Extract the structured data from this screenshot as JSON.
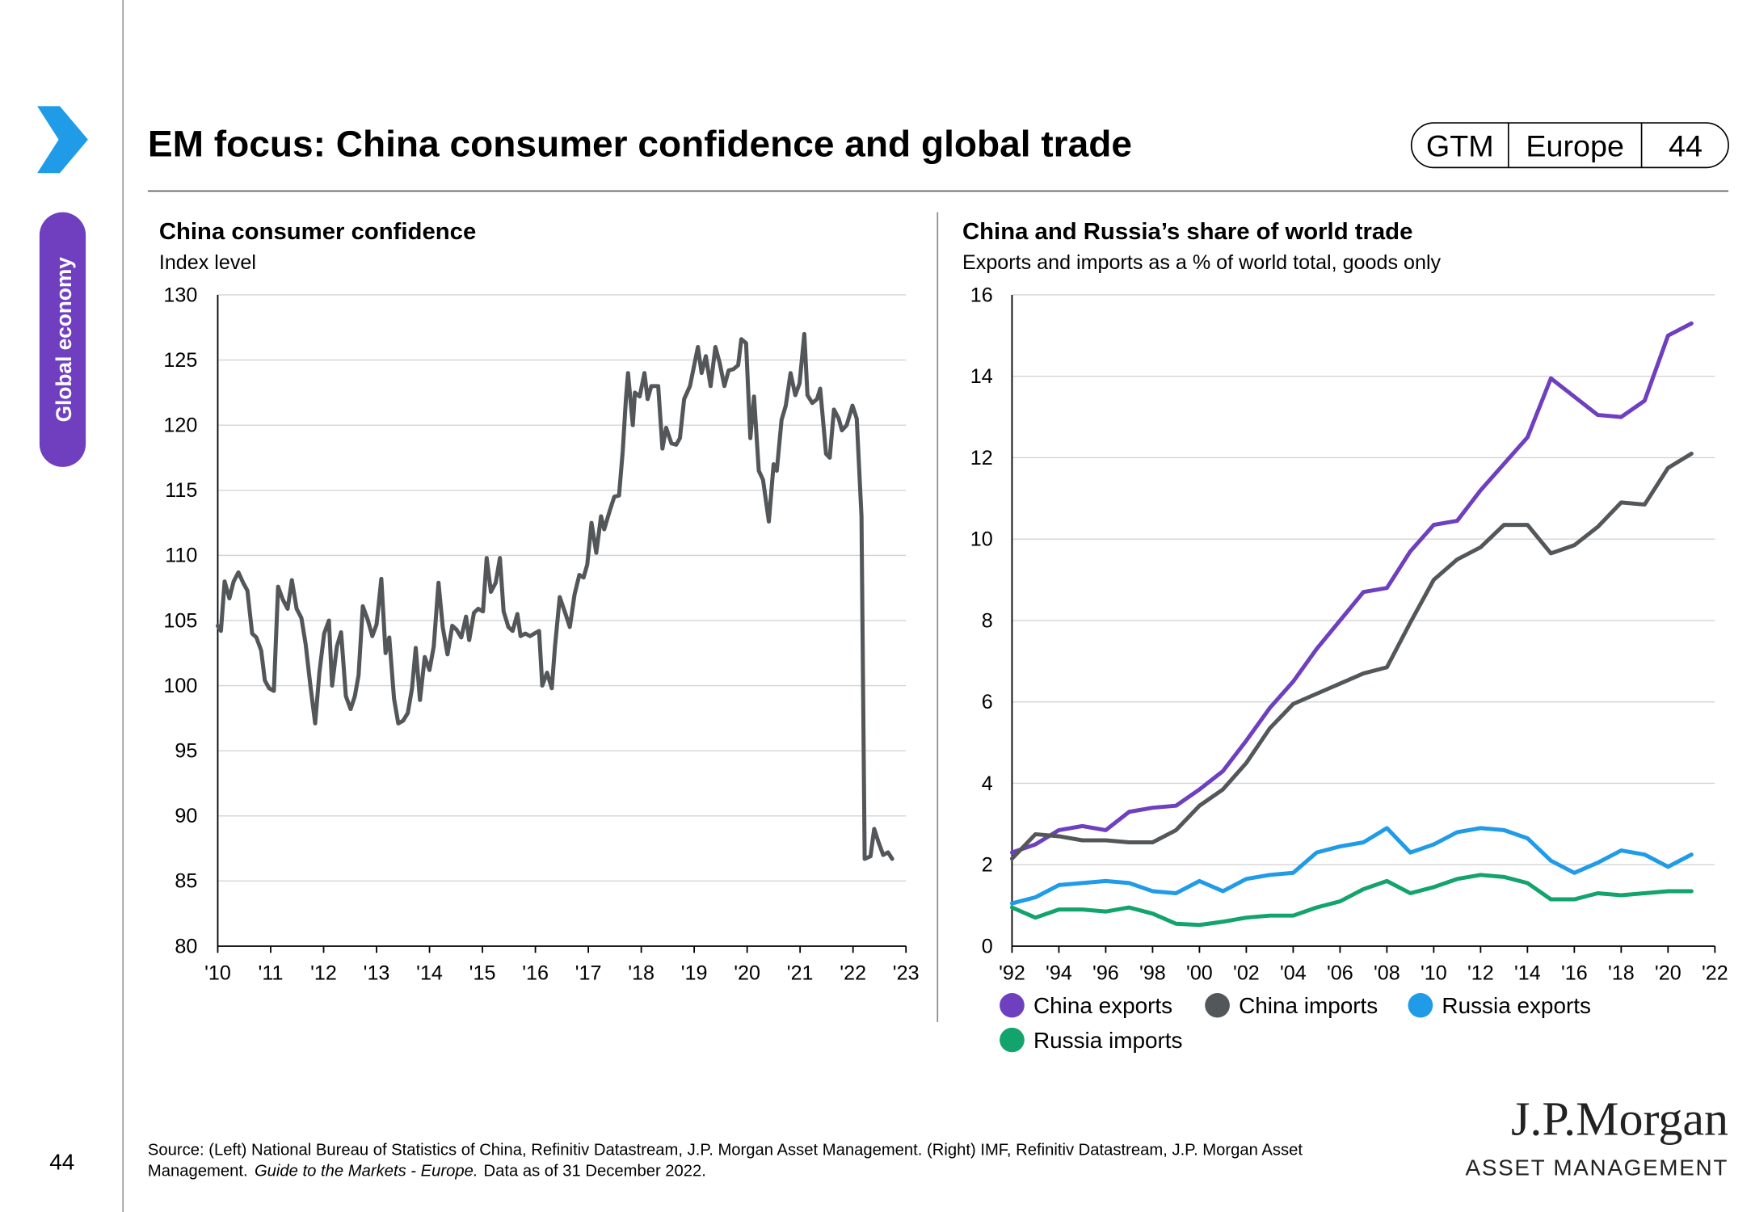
{
  "header": {
    "title": "EM focus: China consumer confidence and global trade",
    "tags": [
      "GTM",
      "Europe",
      "44"
    ]
  },
  "sidebar": {
    "section": "Global economy",
    "page_number": "44"
  },
  "source": {
    "line1": "Source: (Left) National Bureau of Statistics of China, Refinitiv Datastream, J.P. Morgan Asset Management. (Right) IMF, Refinitiv Datastream, J.P. Morgan Asset",
    "line2_start": "Management.",
    "line2_italic": "Guide to the Markets - Europe.",
    "line2_end": "Data as of 31 December 2022."
  },
  "logo": {
    "name": "J.P.Morgan",
    "division": "ASSET MANAGEMENT"
  },
  "chart_data": [
    {
      "type": "line",
      "title": "China consumer confidence",
      "subtitle": "Index level",
      "x": [
        2010,
        2010.06,
        2010.13,
        2010.22,
        2010.3,
        2010.39,
        2010.48,
        2010.56,
        2010.65,
        2010.73,
        2010.82,
        2010.89,
        2010.97,
        2011.06,
        2011.14,
        2011.23,
        2011.32,
        2011.4,
        2011.49,
        2011.58,
        2011.66,
        2011.75,
        2011.84,
        2011.92,
        2012.01,
        2012.1,
        2012.16,
        2012.25,
        2012.33,
        2012.42,
        2012.51,
        2012.59,
        2012.66,
        2012.74,
        2012.83,
        2012.92,
        2013,
        2013.09,
        2013.17,
        2013.24,
        2013.33,
        2013.41,
        2013.5,
        2013.59,
        2013.67,
        2013.74,
        2013.82,
        2013.91,
        2014,
        2014.08,
        2014.17,
        2014.25,
        2014.34,
        2014.43,
        2014.51,
        2014.6,
        2014.69,
        2014.75,
        2014.84,
        2014.92,
        2015.01,
        2015.08,
        2015.16,
        2015.25,
        2015.33,
        2015.4,
        2015.49,
        2015.57,
        2015.66,
        2015.72,
        2015.81,
        2015.9,
        2015.98,
        2016.07,
        2016.13,
        2016.22,
        2016.31,
        2016.37,
        2016.46,
        2016.57,
        2016.65,
        2016.74,
        2016.83,
        2016.91,
        2016.98,
        2017.06,
        2017.15,
        2017.24,
        2017.3,
        2017.41,
        2017.49,
        2017.58,
        2017.65,
        2017.71,
        2017.75,
        2017.84,
        2017.88,
        2017.97,
        2018.06,
        2018.12,
        2018.19,
        2018.32,
        2018.4,
        2018.47,
        2018.57,
        2018.66,
        2018.73,
        2018.81,
        2018.92,
        2019.07,
        2019.14,
        2019.22,
        2019.31,
        2019.4,
        2019.48,
        2019.57,
        2019.65,
        2019.74,
        2019.83,
        2019.89,
        2019.98,
        2020.06,
        2020.13,
        2020.22,
        2020.3,
        2020.41,
        2020.5,
        2020.56,
        2020.65,
        2020.73,
        2020.82,
        2020.91,
        2020.99,
        2021.08,
        2021.14,
        2021.23,
        2021.32,
        2021.38,
        2021.49,
        2021.56,
        2021.64,
        2021.73,
        2021.79,
        2021.88,
        2021.99,
        2022.07,
        2022.16,
        2022.22,
        2022.33,
        2022.4,
        2022.48,
        2022.57,
        2022.66,
        2022.74
      ],
      "series": [
        {
          "color": "#54575a",
          "values": [
            104.6,
            104.2,
            108,
            106.7,
            108,
            108.7,
            107.9,
            107.3,
            104,
            103.7,
            102.7,
            100.4,
            99.8,
            99.6,
            107.6,
            106.6,
            105.9,
            108.1,
            105.9,
            105.2,
            103.2,
            100,
            97.1,
            101,
            104,
            105,
            100,
            103,
            104.1,
            99.2,
            98.2,
            99.2,
            100.8,
            106.1,
            105.1,
            103.8,
            104.7,
            108.2,
            102.5,
            103.7,
            99,
            97.1,
            97.3,
            97.9,
            99.8,
            102.9,
            98.9,
            102.2,
            101.2,
            103,
            107.9,
            104.5,
            102.4,
            104.6,
            104.3,
            103.7,
            105.3,
            103.5,
            105.6,
            105.9,
            105.7,
            109.8,
            107.2,
            107.9,
            109.8,
            105.7,
            104.5,
            104.2,
            105.5,
            103.8,
            104,
            103.8,
            104,
            104.2,
            100,
            101,
            99.8,
            103,
            106.8,
            105.5,
            104.5,
            107,
            108.5,
            108.3,
            109.3,
            112.5,
            110.2,
            113,
            112,
            113.5,
            114.5,
            114.6,
            118,
            122,
            124,
            120,
            122.5,
            122.2,
            124,
            122,
            123,
            123,
            118.2,
            119.8,
            118.6,
            118.5,
            119,
            122,
            123,
            126,
            124,
            125.3,
            123,
            126,
            124.8,
            123,
            124.2,
            124.3,
            124.6,
            126.6,
            126.3,
            119,
            122.2,
            116.5,
            115.8,
            112.6,
            117,
            116.5,
            120.4,
            121.5,
            124,
            122.3,
            123.2,
            127,
            122.3,
            121.7,
            122,
            122.8,
            117.8,
            117.5,
            121.2,
            120.5,
            119.6,
            120,
            121.5,
            120.5,
            113,
            86.7,
            86.9,
            89,
            88,
            87,
            87.2,
            86.7
          ]
        }
      ],
      "xlim": [
        2010,
        2023
      ],
      "xticks": [
        {
          "value": 2010,
          "label": "'10"
        },
        {
          "value": 2011,
          "label": "'11"
        },
        {
          "value": 2012,
          "label": "'12"
        },
        {
          "value": 2013,
          "label": "'13"
        },
        {
          "value": 2014,
          "label": "'14"
        },
        {
          "value": 2015,
          "label": "'15"
        },
        {
          "value": 2016,
          "label": "'16"
        },
        {
          "value": 2017,
          "label": "'17"
        },
        {
          "value": 2018,
          "label": "'18"
        },
        {
          "value": 2019,
          "label": "'19"
        },
        {
          "value": 2020,
          "label": "'20"
        },
        {
          "value": 2021,
          "label": "'21"
        },
        {
          "value": 2022,
          "label": "'22"
        },
        {
          "value": 2023,
          "label": "'23"
        }
      ],
      "ylim": [
        80,
        130
      ],
      "yticks": [
        80,
        85,
        90,
        95,
        100,
        105,
        110,
        115,
        120,
        125,
        130
      ],
      "grid": true
    },
    {
      "type": "line",
      "title": "China and Russia’s share of world trade",
      "subtitle": "Exports and imports as a % of world total, goods only",
      "x": [
        1992,
        1993,
        1994,
        1995,
        1996,
        1997,
        1998,
        1999,
        2000,
        2001,
        2002,
        2003,
        2004,
        2005,
        2006,
        2007,
        2008,
        2009,
        2010,
        2011,
        2012,
        2013,
        2014,
        2015,
        2016,
        2017,
        2018,
        2019,
        2020,
        2021
      ],
      "series": [
        {
          "name": "China exports",
          "color": "#6e3fbf",
          "values": [
            2.3,
            2.5,
            2.85,
            2.95,
            2.85,
            3.3,
            3.4,
            3.45,
            3.85,
            4.3,
            5.05,
            5.85,
            6.5,
            7.3,
            8.0,
            8.7,
            8.8,
            9.7,
            10.35,
            10.45,
            11.2,
            11.85,
            12.5,
            13.95,
            13.5,
            13.05,
            13.0,
            13.4,
            15.0,
            15.3
          ]
        },
        {
          "name": "China imports",
          "color": "#54575a",
          "values": [
            2.15,
            2.75,
            2.7,
            2.6,
            2.6,
            2.55,
            2.55,
            2.85,
            3.45,
            3.85,
            4.5,
            5.35,
            5.95,
            6.2,
            6.45,
            6.7,
            6.85,
            7.95,
            9.0,
            9.5,
            9.8,
            10.35,
            10.35,
            9.65,
            9.85,
            10.3,
            10.9,
            10.85,
            11.75,
            12.1
          ]
        },
        {
          "name": "Russia exports",
          "color": "#1f9be8",
          "values": [
            1.05,
            1.2,
            1.5,
            1.55,
            1.6,
            1.55,
            1.35,
            1.3,
            1.6,
            1.35,
            1.65,
            1.75,
            1.8,
            2.3,
            2.45,
            2.55,
            2.9,
            2.3,
            2.5,
            2.8,
            2.9,
            2.85,
            2.65,
            2.1,
            1.8,
            2.05,
            2.35,
            2.25,
            1.95,
            2.25
          ]
        },
        {
          "name": "Russia imports",
          "color": "#13a36c",
          "values": [
            0.95,
            0.7,
            0.9,
            0.9,
            0.85,
            0.95,
            0.8,
            0.55,
            0.52,
            0.6,
            0.7,
            0.75,
            0.75,
            0.95,
            1.1,
            1.4,
            1.6,
            1.3,
            1.45,
            1.65,
            1.75,
            1.7,
            1.55,
            1.15,
            1.15,
            1.3,
            1.25,
            1.3,
            1.35,
            1.35
          ]
        }
      ],
      "xlim": [
        1992,
        2022
      ],
      "xticks": [
        {
          "value": 1992,
          "label": "'92"
        },
        {
          "value": 1994,
          "label": "'94"
        },
        {
          "value": 1996,
          "label": "'96"
        },
        {
          "value": 1998,
          "label": "'98"
        },
        {
          "value": 2000,
          "label": "'00"
        },
        {
          "value": 2002,
          "label": "'02"
        },
        {
          "value": 2004,
          "label": "'04"
        },
        {
          "value": 2006,
          "label": "'06"
        },
        {
          "value": 2008,
          "label": "'08"
        },
        {
          "value": 2010,
          "label": "'10"
        },
        {
          "value": 2012,
          "label": "'12"
        },
        {
          "value": 2014,
          "label": "'14"
        },
        {
          "value": 2016,
          "label": "'16"
        },
        {
          "value": 2018,
          "label": "'18"
        },
        {
          "value": 2020,
          "label": "'20"
        },
        {
          "value": 2022,
          "label": "'22"
        }
      ],
      "ylim": [
        0,
        16
      ],
      "yticks": [
        0,
        2,
        4,
        6,
        8,
        10,
        12,
        14,
        16
      ],
      "grid": true,
      "legend": "bottom"
    }
  ]
}
